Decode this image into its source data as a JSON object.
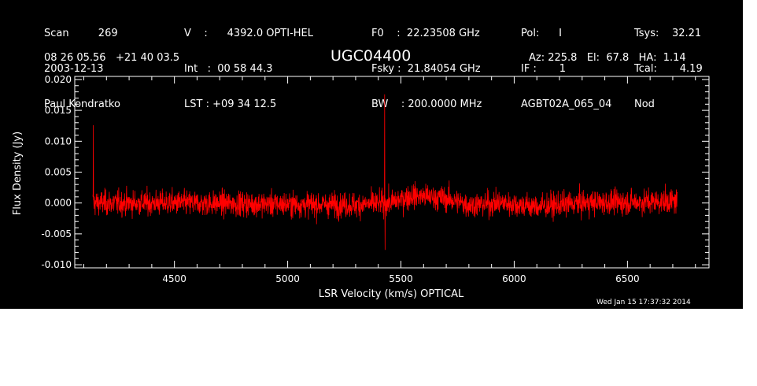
{
  "header": {
    "col1": [
      "Scan         269",
      "2003-12-13",
      "Paul Kondratko"
    ],
    "col2": [
      "V    :      4392.0 OPTI-HEL",
      "Int   :  00 58 44.3",
      "LST : +09 34 12.5"
    ],
    "col3": [
      "F0    :  22.23508 GHz",
      "Fsky :  21.84054 GHz",
      "BW    : 200.0000 MHz"
    ],
    "col4": [
      "Pol:      I",
      "IF :       1",
      "AGBT02A_065_04"
    ],
    "col5": [
      "Tsys:    32.21",
      "Tcal:       4.19",
      "Nod"
    ],
    "coords": "08 26 05.56   +21 40 03.5",
    "source": "UGC04400",
    "azel": "Az: 225.8   El:  67.8   HA:  1.14"
  },
  "footer": {
    "timestamp": "Wed Jan 15 17:37:32 2014"
  },
  "colors": {
    "background": "#000000",
    "axes": "#ffffff",
    "trace": "#ff0000"
  },
  "chart_data": {
    "type": "line",
    "xlabel": "LSR Velocity (km/s) OPTICAL",
    "ylabel": "Flux Density (Jy)",
    "xlim": [
      4060,
      6860
    ],
    "ylim": [
      -0.0105,
      0.0205
    ],
    "xticks": [
      4500,
      5000,
      5500,
      6000,
      6500
    ],
    "xticklabels": [
      "4500",
      "5000",
      "5500",
      "6000",
      "6500"
    ],
    "yticks": [
      -0.01,
      -0.005,
      0.0,
      0.005,
      0.01,
      0.015,
      0.02
    ],
    "yticklabels": [
      "-0.010",
      "-0.005",
      "0.000",
      "0.005",
      "0.010",
      "0.015",
      "0.020"
    ],
    "grid": false,
    "series": [
      {
        "x_range": [
          4140,
          6720
        ],
        "noise_rms": 0.0019,
        "baseline": [
          [
            4140,
            0.0
          ],
          [
            4500,
            0.0
          ],
          [
            5000,
            -0.0002
          ],
          [
            5300,
            -0.0003
          ],
          [
            5450,
            0.0
          ],
          [
            5550,
            0.0012
          ],
          [
            5700,
            0.0007
          ],
          [
            5800,
            -0.0003
          ],
          [
            5950,
            0.0
          ],
          [
            6100,
            -0.0006
          ],
          [
            6300,
            0.0
          ],
          [
            6720,
            0.0003
          ]
        ],
        "spikes": [
          [
            4142,
            0.0126
          ],
          [
            5428,
            0.0176
          ],
          [
            5430,
            -0.0076
          ]
        ]
      }
    ]
  }
}
